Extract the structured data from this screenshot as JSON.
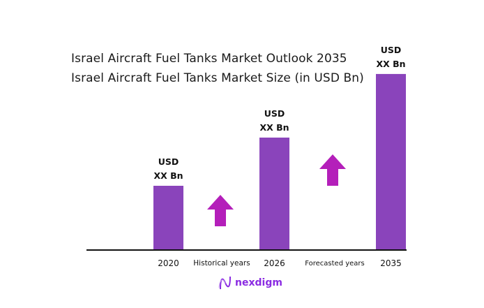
{
  "chart_data": {
    "type": "bar",
    "title": "Israel Aircraft Fuel Tanks Market Outlook 2035",
    "subtitle": "Israel Aircraft Fuel Tanks Market Size (in USD Bn)",
    "categories": [
      "2020",
      "2026",
      "2035"
    ],
    "values": [
      1.0,
      1.75,
      2.74
    ],
    "data_labels": [
      [
        "USD",
        "XX Bn"
      ],
      [
        "USD",
        "XX Bn"
      ],
      [
        "USD",
        "XX Bn"
      ]
    ],
    "period_labels": [
      "Historical years",
      "Forecasted years"
    ],
    "bar_color": "#8a44bb",
    "arrow_color": "#b41fba",
    "grid": false,
    "xlabel": "",
    "ylabel": ""
  },
  "brand": {
    "name": "nexdigm",
    "color": "#8a2be2"
  }
}
